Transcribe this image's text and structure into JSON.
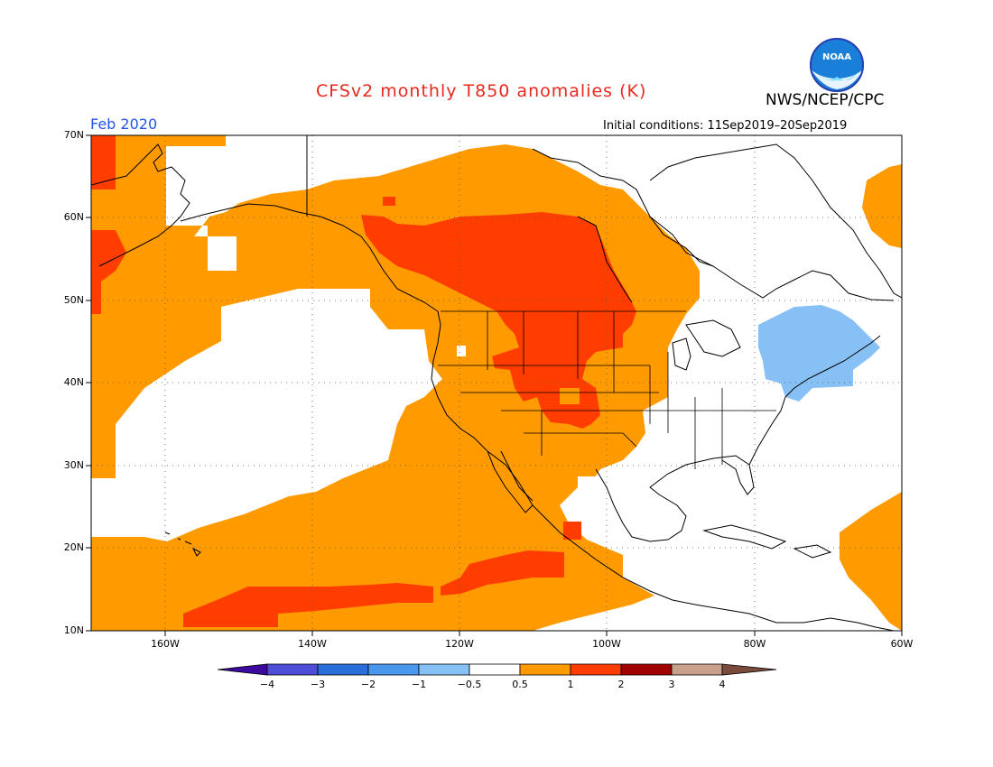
{
  "header": {
    "title": "CFSv2 monthly T850 anomalies (K)",
    "agency": "NWS/NCEP/CPC",
    "logo_text": "NOAA",
    "month": "Feb 2020",
    "initial_conditions": "Initial conditions: 11Sep2019–20Sep2019"
  },
  "axes": {
    "lat_labels": [
      "70N",
      "60N",
      "50N",
      "40N",
      "30N",
      "20N",
      "10N"
    ],
    "lon_labels": [
      "160W",
      "140W",
      "120W",
      "100W",
      "80W",
      "60W"
    ]
  },
  "colorbar": {
    "labels": [
      "−4",
      "−3",
      "−2",
      "−1",
      "−0.5",
      "0.5",
      "1",
      "2",
      "3",
      "4"
    ],
    "colors": [
      "#3c0aa0",
      "#4d4dd6",
      "#2a6fd9",
      "#4a97ee",
      "#86c0f5",
      "#ffffff",
      "#ff9a00",
      "#ff3d00",
      "#a00000",
      "#c9a08a",
      "#7a4a3c"
    ]
  },
  "regions": [
    {
      "name": "warm anomaly 0.5 to 1 K",
      "color": "#ff9a00"
    },
    {
      "name": "warm anomaly 1 to 2 K",
      "color": "#ff3d00"
    },
    {
      "name": "cool anomaly -1 to -0.5 K",
      "color": "#86c0f5"
    }
  ]
}
